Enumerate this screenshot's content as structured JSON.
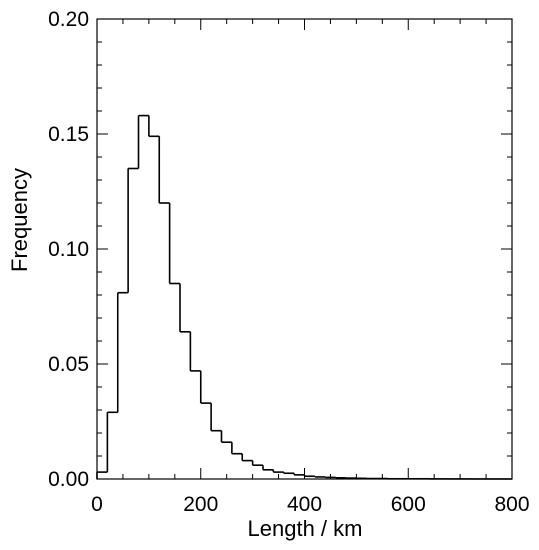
{
  "chart_data": {
    "type": "bar",
    "title": "",
    "xlabel": "Length / km",
    "ylabel": "Frequency",
    "xlim": [
      0,
      800
    ],
    "ylim": [
      0,
      0.2
    ],
    "grid": false,
    "legend": "none",
    "xticks": [
      0,
      200,
      400,
      600,
      800
    ],
    "xtick_labels": [
      "0",
      "200",
      "400",
      "600",
      "800"
    ],
    "yticks": [
      0.0,
      0.05,
      0.1,
      0.15,
      0.2
    ],
    "ytick_labels": [
      "0.00",
      "0.05",
      "0.10",
      "0.15",
      "0.20"
    ],
    "bin_width": 20,
    "bin_start": 0,
    "values": [
      0.003,
      0.029,
      0.081,
      0.135,
      0.158,
      0.149,
      0.12,
      0.085,
      0.064,
      0.047,
      0.033,
      0.021,
      0.016,
      0.011,
      0.008,
      0.006,
      0.004,
      0.003,
      0.0025,
      0.0018,
      0.0012,
      0.0009,
      0.0007,
      0.0005,
      0.0004,
      0.0003,
      0.0002,
      0.0002,
      0.0001,
      0.0001,
      0.0001,
      0.0001,
      5e-05,
      5e-05,
      3e-05,
      3e-05,
      2e-05,
      2e-05,
      1e-05,
      1e-05
    ],
    "line_color": "#000000"
  }
}
